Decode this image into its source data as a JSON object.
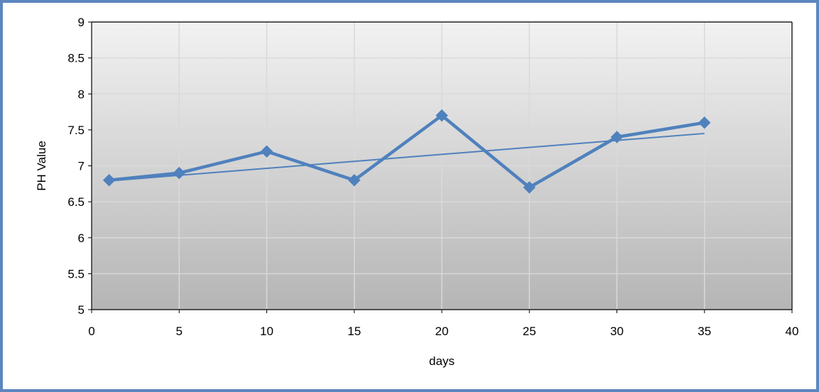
{
  "chart_data": {
    "type": "line",
    "title": "",
    "xlabel": "days",
    "ylabel": "PH Value",
    "xlim": [
      0,
      40
    ],
    "ylim": [
      5,
      9
    ],
    "x_ticks": [
      "0",
      "5",
      "10",
      "15",
      "20",
      "25",
      "30",
      "35",
      "40"
    ],
    "y_ticks": [
      "5",
      "5.5",
      "6",
      "6.5",
      "7",
      "7.5",
      "8",
      "8.5",
      "9"
    ],
    "grid": true,
    "legend": "none",
    "series": [
      {
        "x": [
          1,
          5,
          10,
          15,
          20,
          25,
          30,
          35
        ],
        "values": [
          6.8,
          6.9,
          7.2,
          6.8,
          7.7,
          6.7,
          7.4,
          7.6
        ],
        "marker": "diamond",
        "color": "#4f81bd"
      }
    ],
    "trendline": {
      "type": "linear",
      "x": [
        1,
        35
      ],
      "values": [
        6.79,
        7.45
      ],
      "color": "#4f81bd"
    }
  },
  "colors": {
    "frame": "#5b86c0",
    "series": "#4f81bd",
    "plot_bg_top": "#f2f2f2",
    "plot_bg_bottom": "#b5b5b5",
    "grid": "#d9d9d9"
  }
}
